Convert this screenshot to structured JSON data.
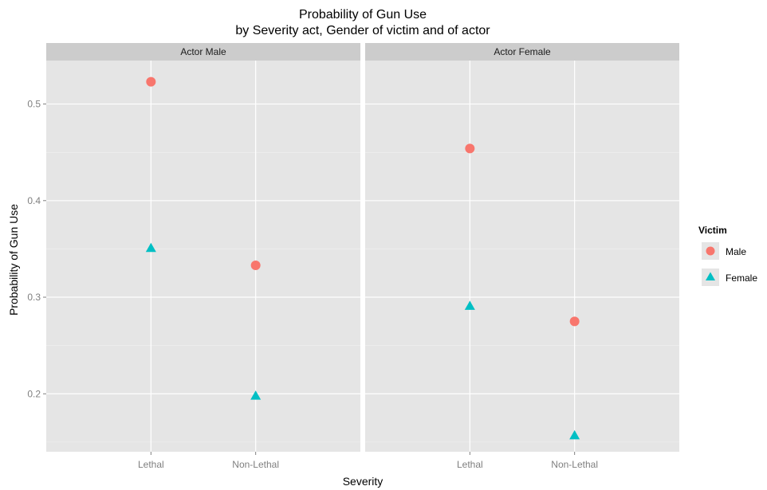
{
  "chart_data": {
    "type": "scatter",
    "title": "Probability of Gun Use",
    "subtitle": "by Severity act, Gender of victim and of actor",
    "xlabel": "Severity",
    "ylabel": "Probability of Gun Use",
    "categories": [
      "Lethal",
      "Non-Lethal"
    ],
    "ylim": [
      0.14,
      0.545
    ],
    "yticks": [
      "0.2",
      "0.3",
      "0.4",
      "0.5"
    ],
    "grid": true,
    "facets": [
      {
        "label": "Actor Male",
        "series": [
          {
            "name": "Male",
            "values": [
              0.523,
              0.333
            ]
          },
          {
            "name": "Female",
            "values": [
              0.351,
              0.198
            ]
          }
        ]
      },
      {
        "label": "Actor Female",
        "series": [
          {
            "name": "Male",
            "values": [
              0.454,
              0.275
            ]
          },
          {
            "name": "Female",
            "values": [
              0.291,
              0.157
            ]
          }
        ]
      }
    ],
    "legend": {
      "title": "Victim",
      "position": "right",
      "entries": [
        {
          "name": "Male",
          "color": "#F8766D",
          "shape": "circle"
        },
        {
          "name": "Female",
          "color": "#00BFC4",
          "shape": "triangle"
        }
      ]
    }
  }
}
